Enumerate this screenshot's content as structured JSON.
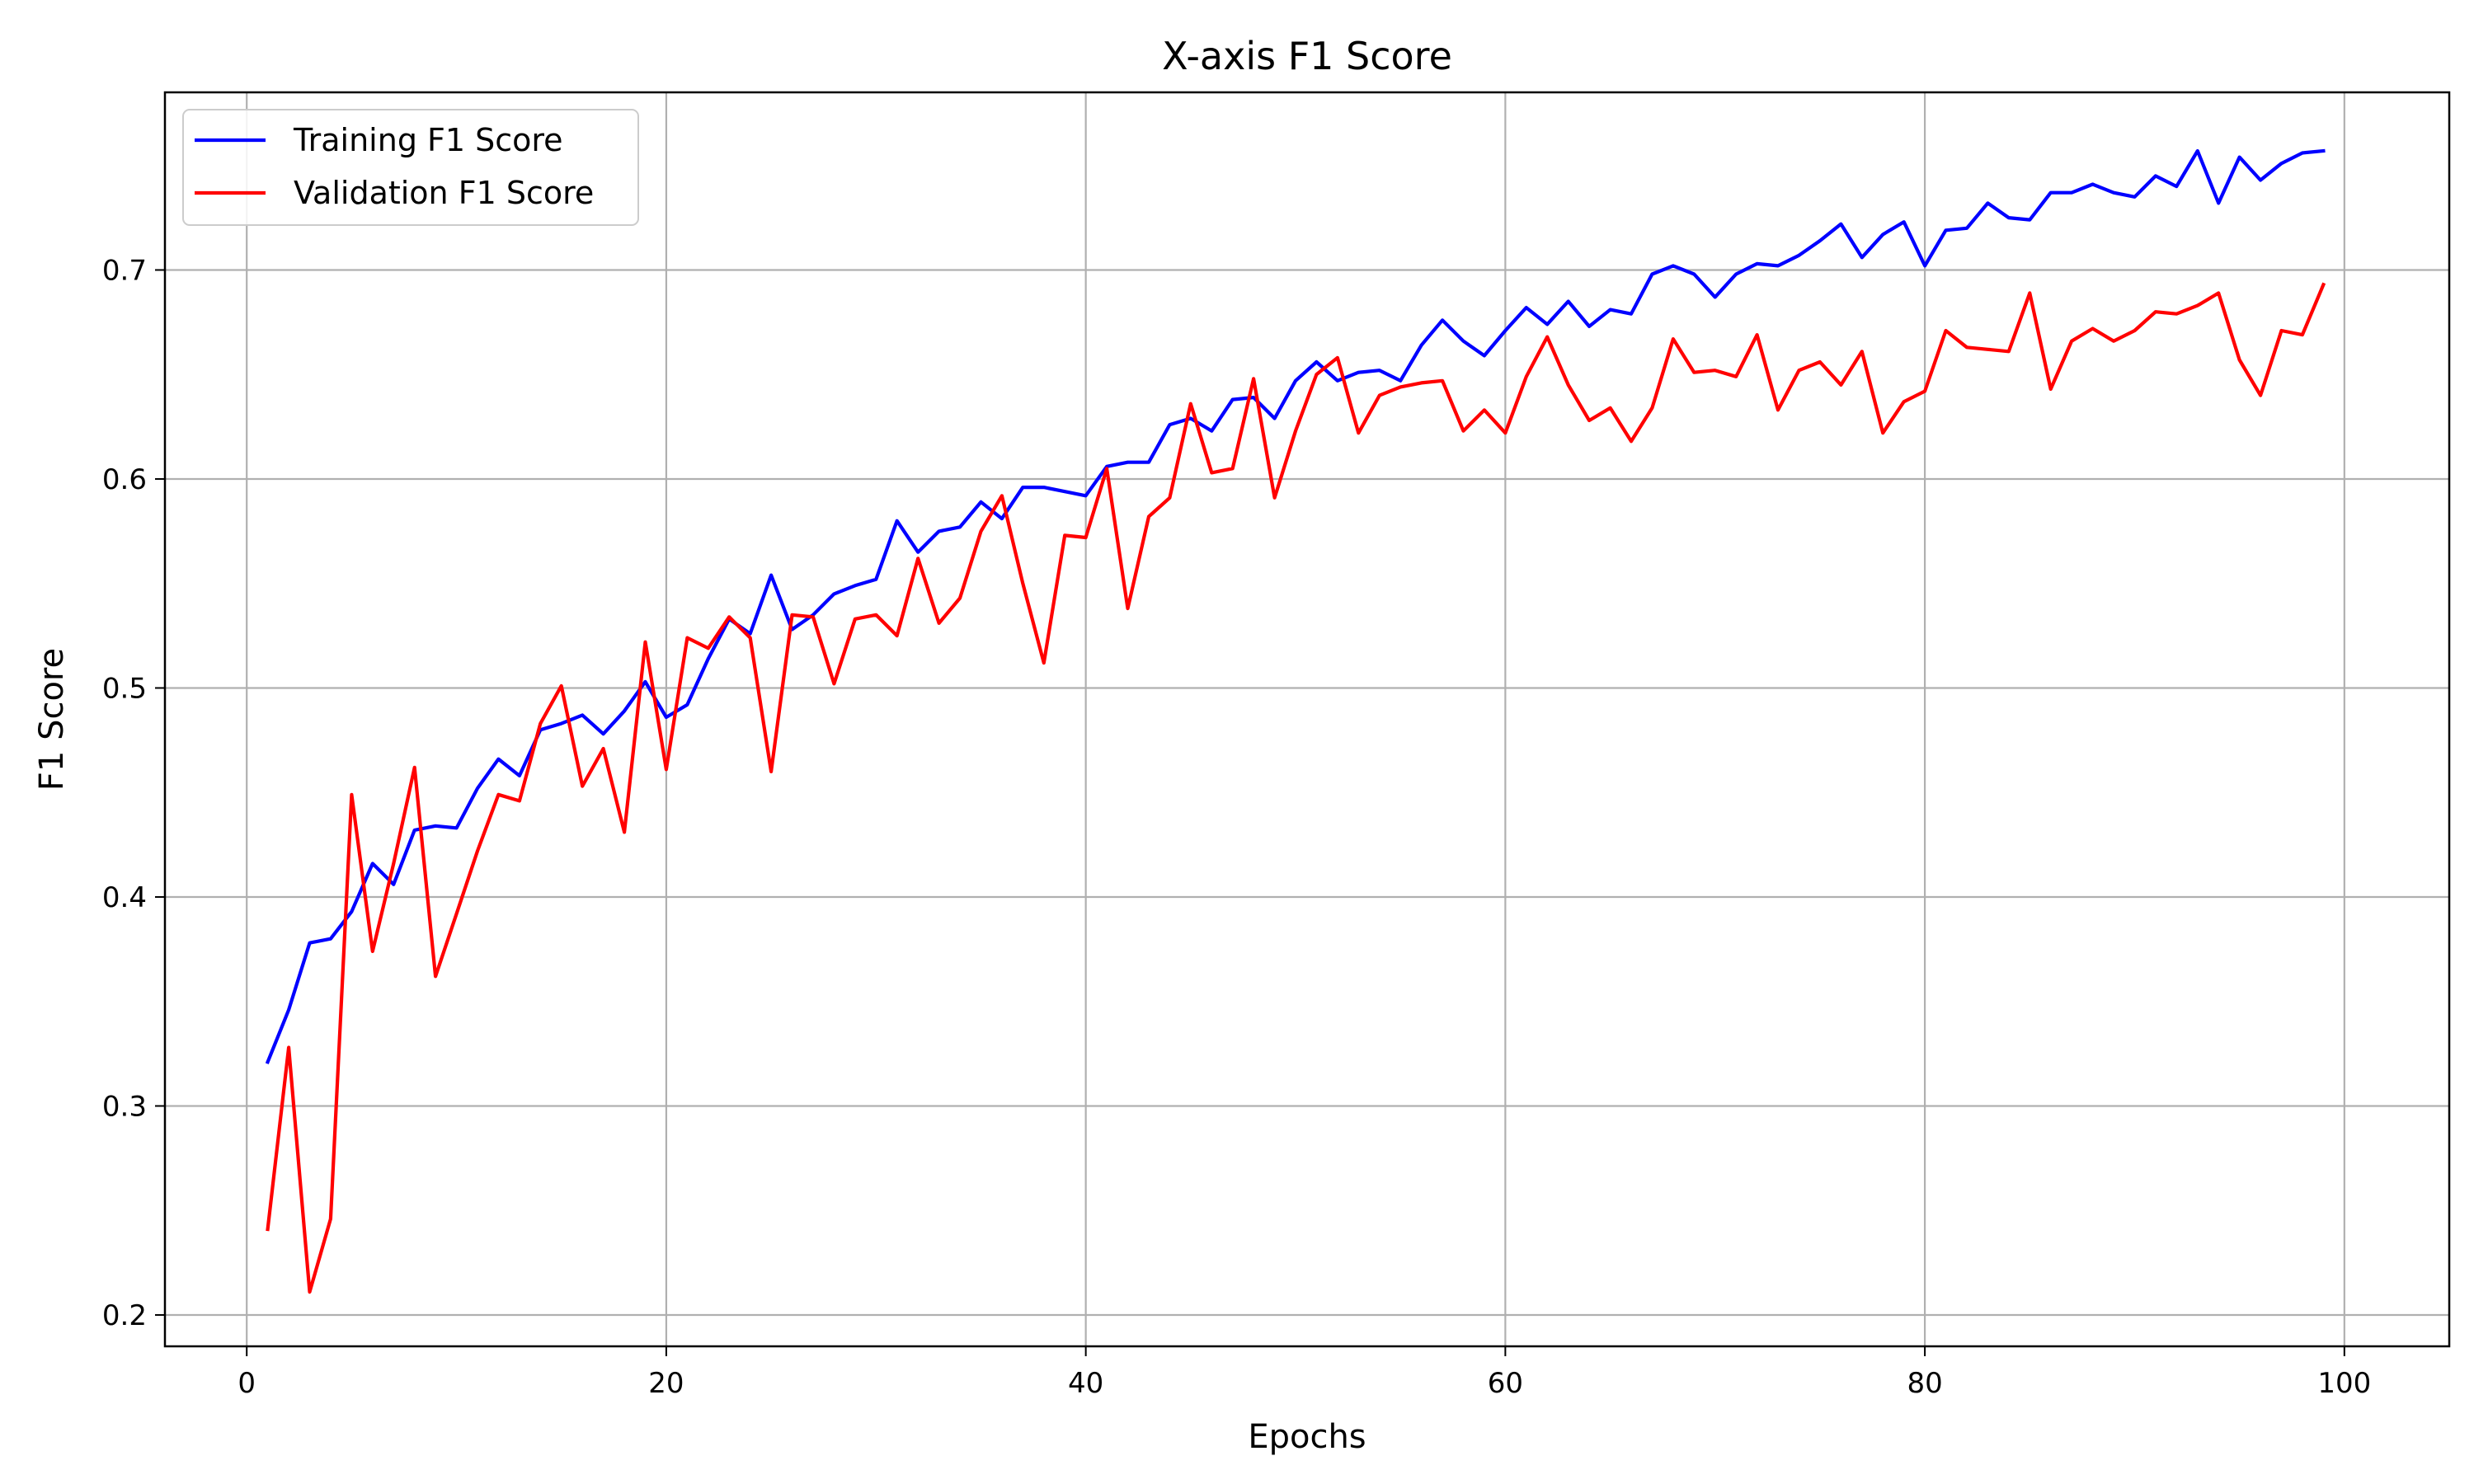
{
  "chart_data": {
    "type": "line",
    "title": "X-axis F1 Score",
    "xlabel": "Epochs",
    "ylabel": "F1 Score",
    "xlim": [
      -3.9,
      105
    ],
    "ylim": [
      0.185,
      0.785
    ],
    "xticks": [
      0,
      20,
      40,
      60,
      80,
      100
    ],
    "yticks": [
      0.2,
      0.3,
      0.4,
      0.5,
      0.6,
      0.7
    ],
    "xtick_labels": [
      "0",
      "20",
      "40",
      "60",
      "80",
      "100"
    ],
    "ytick_labels": [
      "0.2",
      "0.3",
      "0.4",
      "0.5",
      "0.6",
      "0.7"
    ],
    "grid": true,
    "legend_position": "top-left",
    "x": [
      1,
      2,
      3,
      4,
      5,
      6,
      7,
      8,
      9,
      10,
      11,
      12,
      13,
      14,
      15,
      16,
      17,
      18,
      19,
      20,
      21,
      22,
      23,
      24,
      25,
      26,
      27,
      28,
      29,
      30,
      31,
      32,
      33,
      34,
      35,
      36,
      37,
      38,
      39,
      40,
      41,
      42,
      43,
      44,
      45,
      46,
      47,
      48,
      49,
      50,
      51,
      52,
      53,
      54,
      55,
      56,
      57,
      58,
      59,
      60,
      61,
      62,
      63,
      64,
      65,
      66,
      67,
      68,
      69,
      70,
      71,
      72,
      73,
      74,
      75,
      76,
      77,
      78,
      79,
      80,
      81,
      82,
      83,
      84,
      85,
      86,
      87,
      88,
      89,
      90,
      91,
      92,
      93,
      94,
      95,
      96,
      97,
      98,
      99
    ],
    "series": [
      {
        "name": "Training F1 Score",
        "color": "#0000ff",
        "values": [
          0.321,
          0.346,
          0.378,
          0.38,
          0.393,
          0.416,
          0.406,
          0.432,
          0.434,
          0.433,
          0.452,
          0.466,
          0.458,
          0.48,
          0.483,
          0.487,
          0.478,
          0.489,
          0.503,
          0.486,
          0.492,
          0.514,
          0.533,
          0.526,
          0.554,
          0.528,
          0.535,
          0.545,
          0.549,
          0.552,
          0.58,
          0.565,
          0.575,
          0.577,
          0.589,
          0.581,
          0.596,
          0.596,
          0.594,
          0.592,
          0.606,
          0.608,
          0.608,
          0.626,
          0.629,
          0.623,
          0.638,
          0.639,
          0.629,
          0.647,
          0.656,
          0.647,
          0.651,
          0.652,
          0.647,
          0.664,
          0.676,
          0.666,
          0.659,
          0.671,
          0.682,
          0.674,
          0.685,
          0.673,
          0.681,
          0.679,
          0.698,
          0.702,
          0.698,
          0.687,
          0.698,
          0.703,
          0.702,
          0.707,
          0.714,
          0.722,
          0.706,
          0.717,
          0.723,
          0.702,
          0.719,
          0.72,
          0.732,
          0.725,
          0.724,
          0.737,
          0.737,
          0.741,
          0.737,
          0.735,
          0.745,
          0.74,
          0.757,
          0.732,
          0.754,
          0.743,
          0.751,
          0.756,
          0.757
        ]
      },
      {
        "name": "Validation F1 Score",
        "color": "#ff0000",
        "values": [
          0.241,
          0.328,
          0.211,
          0.246,
          0.449,
          0.374,
          0.416,
          0.462,
          0.362,
          0.392,
          0.422,
          0.449,
          0.446,
          0.483,
          0.501,
          0.453,
          0.471,
          0.431,
          0.522,
          0.461,
          0.524,
          0.519,
          0.534,
          0.524,
          0.46,
          0.535,
          0.534,
          0.502,
          0.533,
          0.535,
          0.525,
          0.562,
          0.531,
          0.543,
          0.575,
          0.592,
          0.55,
          0.512,
          0.573,
          0.572,
          0.605,
          0.538,
          0.582,
          0.591,
          0.636,
          0.603,
          0.605,
          0.648,
          0.591,
          0.623,
          0.65,
          0.658,
          0.622,
          0.64,
          0.644,
          0.646,
          0.647,
          0.623,
          0.633,
          0.622,
          0.649,
          0.668,
          0.645,
          0.628,
          0.634,
          0.618,
          0.634,
          0.667,
          0.651,
          0.652,
          0.649,
          0.669,
          0.633,
          0.652,
          0.656,
          0.645,
          0.661,
          0.622,
          0.637,
          0.642,
          0.671,
          0.663,
          0.662,
          0.661,
          0.689,
          0.643,
          0.666,
          0.672,
          0.666,
          0.671,
          0.68,
          0.679,
          0.683,
          0.689,
          0.657,
          0.64,
          0.671,
          0.669,
          0.693
        ]
      }
    ]
  }
}
